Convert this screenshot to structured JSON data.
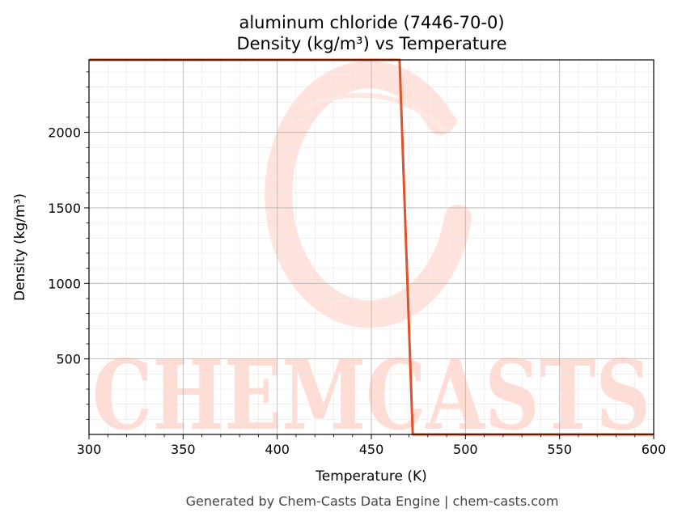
{
  "chart_data": {
    "type": "line",
    "title": "aluminum chloride (7446-70-0)",
    "subtitle": "Density (kg/m³) vs Temperature",
    "xlabel": "Temperature (K)",
    "ylabel": "Density (kg/m³)",
    "xlim": [
      300,
      600
    ],
    "ylim": [
      0,
      2480
    ],
    "x_ticks": [
      300,
      350,
      400,
      450,
      500,
      550,
      600
    ],
    "y_ticks": [
      500,
      1000,
      1500,
      2000
    ],
    "grid": true,
    "series": [
      {
        "color": "#e0522a",
        "x": [
          300,
          465,
          472,
          600
        ],
        "y": [
          2480,
          2480,
          0,
          0
        ]
      }
    ],
    "watermark": {
      "text": "CHEMCASTS",
      "color": "#ffd9d2"
    },
    "footer": "Generated by Chem-Casts Data Engine | chem-casts.com"
  }
}
